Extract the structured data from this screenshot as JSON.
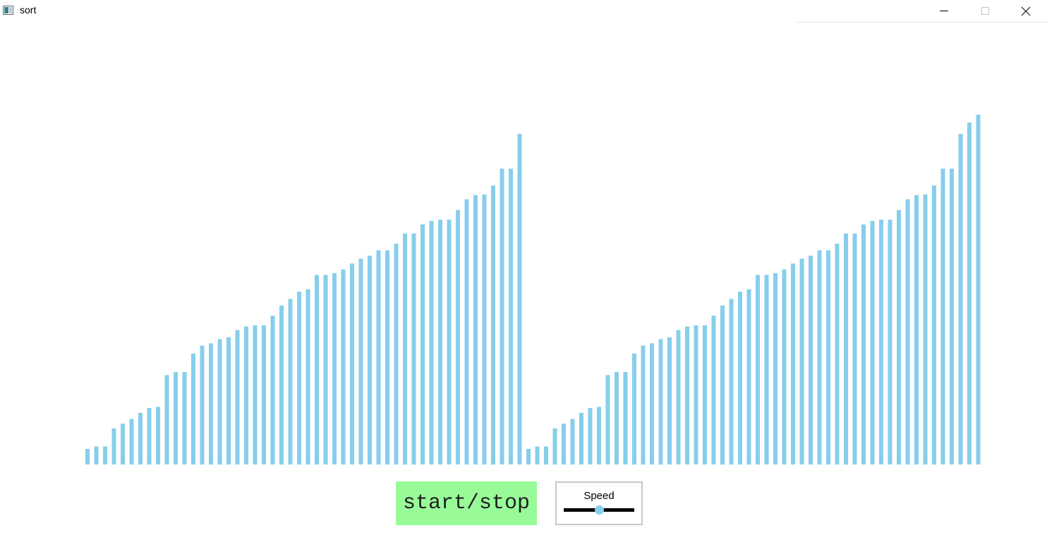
{
  "window": {
    "title": "sort",
    "controls": [
      "minimize-icon",
      "maximize-icon",
      "close-icon"
    ]
  },
  "colors": {
    "bar": "#87ceeb",
    "start_button_bg": "#98fb98",
    "slider_thumb": "#87ceeb",
    "slider_track": "#000000"
  },
  "chart_data": {
    "type": "bar",
    "values": [
      26,
      30,
      30,
      60,
      68,
      76,
      86,
      94,
      96,
      149,
      154,
      154,
      185,
      198,
      202,
      209,
      212,
      224,
      230,
      232,
      232,
      248,
      265,
      276,
      288,
      292,
      316,
      316,
      319,
      325,
      335,
      343,
      348,
      357,
      357,
      368,
      385,
      385,
      400,
      406,
      408,
      408,
      424,
      442,
      449,
      450,
      465,
      493,
      493,
      551,
      570,
      583
    ],
    "title": "",
    "xlabel": "",
    "ylabel": ""
  },
  "controls": {
    "start_stop_label": "start/stop",
    "speed_label": "Speed",
    "speed_value": 0.5
  }
}
